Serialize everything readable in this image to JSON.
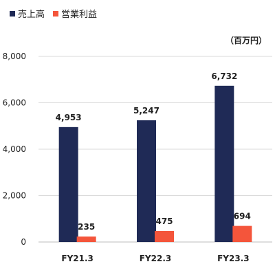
{
  "chart_data": {
    "type": "bar",
    "categories": [
      "FY21.3",
      "FY22.3",
      "FY23.3"
    ],
    "series": [
      {
        "name": "売上高",
        "color": "#1f2a56",
        "values": [
          4953,
          5247,
          6732
        ],
        "labels": [
          "4,953",
          "5,247",
          "6,732"
        ]
      },
      {
        "name": "営業利益",
        "color": "#f4553b",
        "values": [
          235,
          475,
          694
        ],
        "labels": [
          "235",
          "475",
          "694"
        ]
      }
    ],
    "unit": "（百万円）",
    "ylim": [
      0,
      8000
    ],
    "yticks": [
      0,
      2000,
      4000,
      6000,
      8000
    ],
    "ytick_labels": [
      "0",
      "2,000",
      "4,000",
      "6,000",
      "8,000"
    ],
    "grid": true,
    "legend_position": "top-left"
  }
}
